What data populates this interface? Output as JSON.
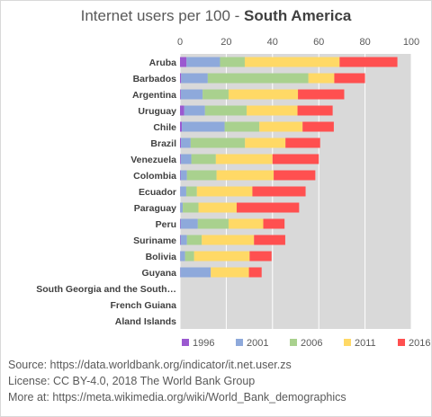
{
  "chart_data": {
    "type": "bar",
    "stacked": true,
    "orientation": "horizontal",
    "title": "Internet users per 100",
    "title_bold": "South America",
    "title_separator": " - ",
    "xlim": [
      0,
      100
    ],
    "xticks": [
      0,
      20,
      40,
      60,
      80,
      100
    ],
    "grid": true,
    "legend_position": "bottom",
    "categories": [
      "Aruba",
      "Barbados",
      "Argentina",
      "Uruguay",
      "Chile",
      "Brazil",
      "Venezuela",
      "Colombia",
      "Ecuador",
      "Paraguay",
      "Peru",
      "Suriname",
      "Bolivia",
      "Guyana",
      "South Georgia and the South…",
      "French Guiana",
      "Aland Islands"
    ],
    "series": [
      {
        "name": "1996",
        "color": "#9b59d0",
        "values": [
          2.8,
          0.5,
          0.3,
          1.8,
          0.8,
          0.4,
          0.3,
          0.2,
          0.1,
          0.1,
          0.2,
          0.2,
          0.1,
          0.1,
          0,
          0,
          0
        ]
      },
      {
        "name": "2001",
        "color": "#8ea9db",
        "values": [
          14.5,
          11.5,
          9.5,
          9.0,
          18.5,
          4.2,
          4.6,
          2.8,
          2.6,
          1.1,
          7.5,
          2.8,
          2.1,
          13.2,
          0,
          0,
          0
        ]
      },
      {
        "name": "2006",
        "color": "#a9d18e",
        "values": [
          10.7,
          43.5,
          11.2,
          18.0,
          15.0,
          23.5,
          10.6,
          12.8,
          4.6,
          6.8,
          13.3,
          6.4,
          3.9,
          0,
          0,
          0,
          0
        ]
      },
      {
        "name": "2011",
        "color": "#ffd966",
        "values": [
          41.0,
          11.2,
          30.0,
          22.0,
          18.7,
          17.5,
          24.5,
          24.7,
          24.0,
          16.5,
          15.0,
          22.6,
          24.0,
          16.5,
          0,
          0,
          0
        ]
      },
      {
        "name": "2016",
        "color": "#ff5050",
        "values": [
          25.0,
          13.3,
          20.0,
          15.2,
          13.5,
          15.0,
          20.0,
          18.0,
          23.0,
          27.0,
          9.2,
          13.5,
          9.5,
          5.5,
          0,
          0,
          0
        ]
      }
    ]
  },
  "source_lines": [
    "Source: https://data.worldbank.org/indicator/it.net.user.zs",
    "License: CC BY-4.0,  2018  The World Bank Group",
    "More at: https://meta.wikimedia.org/wiki/World_Bank_demographics"
  ]
}
